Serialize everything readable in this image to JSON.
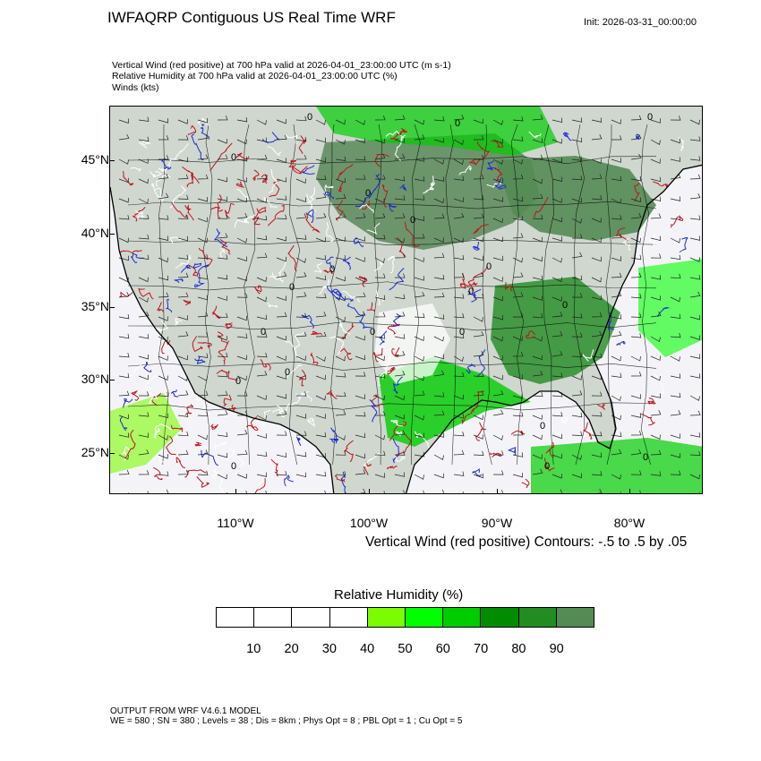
{
  "header": {
    "title": "IWFAQRP Contiguous US Real Time WRF",
    "init": "Init: 2026-03-31_00:00:00",
    "subtitle_lines": [
      "Vertical Wind (red positive) at 700 hPa valid at 2026-04-01_23:00:00 UTC   (m s-1)",
      "Relative Humidity at 700 hPa valid at 2026-04-01_23:00:00 UTC   (%)",
      "Winds   (kts)"
    ]
  },
  "map": {
    "lat_labels": [
      "45°N",
      "40°N",
      "35°N",
      "30°N",
      "25°N"
    ],
    "lon_labels": [
      "110°W",
      "100°W",
      "90°W",
      "80°W"
    ],
    "contour_note": "Vertical Wind (red positive) Contours: -.5 to .5 by .05",
    "contour_zero_label": "0",
    "colors": {
      "ocean": "#f4f4f8",
      "positive": "#c0141a",
      "negative": "#1a2bd0",
      "barb": "#222222"
    }
  },
  "colorbar": {
    "title": "Relative Humidity  (%)",
    "ticks": [
      "10",
      "20",
      "30",
      "40",
      "50",
      "60",
      "70",
      "80",
      "90"
    ],
    "colors": [
      "#ffffff",
      "#ffffff",
      "#ffffff",
      "#ffffff",
      "#7cfc00",
      "#00ff00",
      "#00cd00",
      "#008b00",
      "#228b22",
      "#548b54"
    ]
  },
  "footer": {
    "line1": "OUTPUT FROM WRF V4.6.1 MODEL",
    "line2": "WE = 580 ; SN = 380 ; Levels = 38 ; Dis = 8km ; Phys Opt = 8 ; PBL Opt = 1 ; Cu Opt = 5"
  }
}
